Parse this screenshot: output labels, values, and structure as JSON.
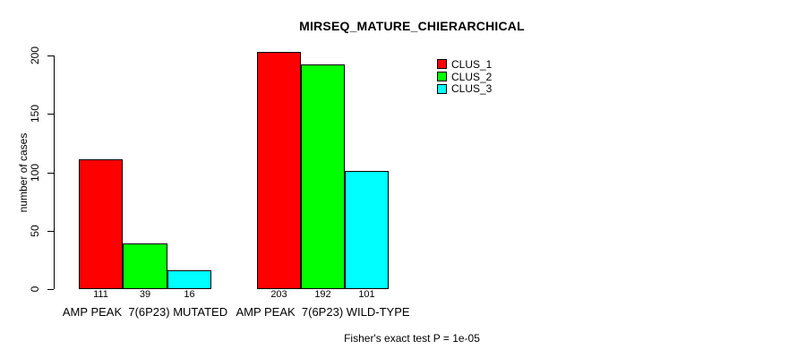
{
  "chart_data": {
    "type": "bar",
    "title": "MIRSEQ_MATURE_CHIERARCHICAL",
    "ylabel": "number of cases",
    "ylim": [
      0,
      200
    ],
    "yticks": [
      0,
      50,
      100,
      150,
      200
    ],
    "grid": false,
    "categories": [
      "AMP PEAK  7(6P23) MUTATED",
      "AMP PEAK  7(6P23) WILD-TYPE"
    ],
    "series": [
      {
        "name": "CLUS_1",
        "color": "#ff0000",
        "values": [
          111,
          203
        ]
      },
      {
        "name": "CLUS_2",
        "color": "#00ff00",
        "values": [
          39,
          192
        ]
      },
      {
        "name": "CLUS_3",
        "color": "#00ffff",
        "values": [
          16,
          101
        ]
      }
    ],
    "legend": {
      "position": "inside-top-right",
      "entries": [
        "CLUS_1",
        "CLUS_2",
        "CLUS_3"
      ]
    },
    "bar_value_labels_shown": true,
    "footnote": "Fisher's exact test P = 1e-05"
  }
}
